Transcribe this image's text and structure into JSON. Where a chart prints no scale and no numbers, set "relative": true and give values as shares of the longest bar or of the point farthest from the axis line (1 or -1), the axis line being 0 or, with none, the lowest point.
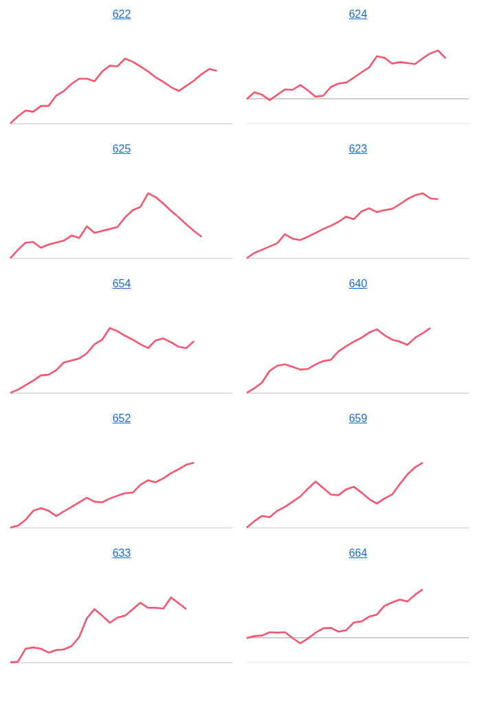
{
  "chart_data": [
    {
      "type": "line",
      "title": "622",
      "relative": true,
      "legend": false,
      "categories": [
        null,
        null,
        null,
        null,
        null,
        null,
        null,
        null,
        null,
        null,
        null,
        null,
        null,
        null,
        null,
        null,
        null,
        null,
        null,
        null,
        null,
        null,
        null,
        null,
        null,
        null,
        null,
        null,
        null,
        null
      ],
      "series": [
        {
          "color": "#f5566f",
          "values": [
            0,
            0.11,
            0.2,
            0.18,
            0.27,
            0.27,
            0.43,
            0.5,
            0.61,
            0.69,
            0.69,
            0.65,
            0.8,
            0.89,
            0.88,
            1,
            0.95,
            0.88,
            0.8,
            0.71,
            0.64,
            0.56,
            0.5,
            0.58,
            0.66,
            0.76,
            0.84,
            0.81,
            null,
            null
          ]
        }
      ]
    },
    {
      "type": "line",
      "title": "624",
      "relative": true,
      "legend": false,
      "categories": [
        null,
        null,
        null,
        null,
        null,
        null,
        null,
        null,
        null,
        null,
        null,
        null,
        null,
        null,
        null,
        null,
        null,
        null,
        null,
        null,
        null,
        null,
        null,
        null,
        null,
        null,
        null,
        null,
        null,
        null
      ],
      "series": [
        {
          "color": "#f5566f",
          "values": [
            0,
            0.14,
            0.09,
            -0.02,
            0.09,
            0.2,
            0.19,
            0.29,
            0.18,
            0.05,
            0.07,
            0.25,
            0.32,
            0.34,
            0.44,
            0.55,
            0.65,
            0.88,
            0.85,
            0.73,
            0.76,
            0.74,
            0.72,
            0.84,
            0.94,
            1,
            0.84,
            null,
            null,
            null
          ]
        }
      ]
    },
    {
      "type": "line",
      "title": "625",
      "relative": true,
      "legend": false,
      "categories": [
        null,
        null,
        null,
        null,
        null,
        null,
        null,
        null,
        null,
        null,
        null,
        null,
        null,
        null,
        null,
        null,
        null,
        null,
        null,
        null,
        null,
        null,
        null,
        null,
        null,
        null,
        null,
        null,
        null,
        null
      ],
      "series": [
        {
          "color": "#f5566f",
          "values": [
            0,
            0.13,
            0.24,
            0.25,
            0.16,
            0.21,
            0.24,
            0.27,
            0.35,
            0.31,
            0.49,
            0.39,
            0.42,
            0.45,
            0.48,
            0.63,
            0.74,
            0.79,
            1,
            0.94,
            0.84,
            0.73,
            0.63,
            0.52,
            0.42,
            0.33,
            null,
            null,
            null,
            null
          ]
        }
      ]
    },
    {
      "type": "line",
      "title": "623",
      "relative": true,
      "legend": false,
      "categories": [
        null,
        null,
        null,
        null,
        null,
        null,
        null,
        null,
        null,
        null,
        null,
        null,
        null,
        null,
        null,
        null,
        null,
        null,
        null,
        null,
        null,
        null,
        null,
        null,
        null,
        null,
        null,
        null,
        null,
        null
      ],
      "series": [
        {
          "color": "#f5566f",
          "values": [
            0,
            0.08,
            0.13,
            0.18,
            0.23,
            0.37,
            0.3,
            0.28,
            0.33,
            0.39,
            0.45,
            0.5,
            0.56,
            0.64,
            0.6,
            0.72,
            0.77,
            0.71,
            0.74,
            0.76,
            0.83,
            0.91,
            0.97,
            1,
            0.92,
            0.91,
            null,
            null,
            null,
            null
          ]
        }
      ]
    },
    {
      "type": "line",
      "title": "654",
      "relative": true,
      "legend": false,
      "categories": [
        null,
        null,
        null,
        null,
        null,
        null,
        null,
        null,
        null,
        null,
        null,
        null,
        null,
        null,
        null,
        null,
        null,
        null,
        null,
        null,
        null,
        null,
        null,
        null,
        null,
        null,
        null,
        null,
        null,
        null
      ],
      "series": [
        {
          "color": "#f5566f",
          "values": [
            0,
            0.05,
            0.12,
            0.19,
            0.27,
            0.28,
            0.35,
            0.47,
            0.5,
            0.53,
            0.61,
            0.75,
            0.82,
            1,
            0.95,
            0.88,
            0.82,
            0.75,
            0.69,
            0.81,
            0.84,
            0.78,
            0.71,
            0.69,
            0.8,
            null,
            null,
            null,
            null,
            null
          ]
        }
      ]
    },
    {
      "type": "line",
      "title": "640",
      "relative": true,
      "legend": false,
      "categories": [
        null,
        null,
        null,
        null,
        null,
        null,
        null,
        null,
        null,
        null,
        null,
        null,
        null,
        null,
        null,
        null,
        null,
        null,
        null,
        null,
        null,
        null,
        null,
        null,
        null,
        null,
        null,
        null,
        null,
        null
      ],
      "series": [
        {
          "color": "#f5566f",
          "values": [
            0,
            0.07,
            0.16,
            0.34,
            0.42,
            0.44,
            0.4,
            0.36,
            0.37,
            0.44,
            0.49,
            0.51,
            0.64,
            0.72,
            0.79,
            0.85,
            0.93,
            0.98,
            0.89,
            0.82,
            0.79,
            0.74,
            0.85,
            0.92,
            1,
            null,
            null,
            null,
            null,
            null
          ]
        }
      ]
    },
    {
      "type": "line",
      "title": "652",
      "relative": true,
      "legend": false,
      "categories": [
        null,
        null,
        null,
        null,
        null,
        null,
        null,
        null,
        null,
        null,
        null,
        null,
        null,
        null,
        null,
        null,
        null,
        null,
        null,
        null,
        null,
        null,
        null,
        null,
        null,
        null,
        null,
        null,
        null,
        null
      ],
      "series": [
        {
          "color": "#f5566f",
          "values": [
            0,
            0.03,
            0.12,
            0.26,
            0.3,
            0.26,
            0.18,
            0.25,
            0.32,
            0.39,
            0.46,
            0.4,
            0.39,
            0.45,
            0.49,
            0.53,
            0.54,
            0.66,
            0.73,
            0.7,
            0.76,
            0.84,
            0.9,
            0.97,
            1,
            null,
            null,
            null,
            null,
            null
          ]
        }
      ]
    },
    {
      "type": "line",
      "title": "659",
      "relative": true,
      "legend": false,
      "categories": [
        null,
        null,
        null,
        null,
        null,
        null,
        null,
        null,
        null,
        null,
        null,
        null,
        null,
        null,
        null,
        null,
        null,
        null,
        null,
        null,
        null,
        null,
        null,
        null,
        null,
        null,
        null,
        null,
        null,
        null
      ],
      "series": [
        {
          "color": "#f5566f",
          "values": [
            0,
            0.1,
            0.18,
            0.16,
            0.26,
            0.32,
            0.4,
            0.48,
            0.6,
            0.71,
            0.61,
            0.51,
            0.5,
            0.59,
            0.63,
            0.54,
            0.44,
            0.37,
            0.45,
            0.51,
            0.67,
            0.82,
            0.93,
            1,
            null,
            null,
            null,
            null,
            null,
            null
          ]
        }
      ]
    },
    {
      "type": "line",
      "title": "633",
      "relative": true,
      "legend": false,
      "categories": [
        null,
        null,
        null,
        null,
        null,
        null,
        null,
        null,
        null,
        null,
        null,
        null,
        null,
        null,
        null,
        null,
        null,
        null,
        null,
        null,
        null,
        null,
        null,
        null,
        null,
        null,
        null,
        null,
        null,
        null
      ],
      "series": [
        {
          "color": "#f5566f",
          "values": [
            0,
            0.01,
            0.21,
            0.23,
            0.21,
            0.15,
            0.19,
            0.2,
            0.25,
            0.39,
            0.68,
            0.82,
            0.72,
            0.61,
            0.69,
            0.72,
            0.82,
            0.92,
            0.84,
            0.84,
            0.83,
            1,
            0.91,
            0.82,
            null,
            null,
            null,
            null,
            null,
            null
          ]
        }
      ]
    },
    {
      "type": "line",
      "title": "664",
      "relative": true,
      "legend": false,
      "categories": [
        null,
        null,
        null,
        null,
        null,
        null,
        null,
        null,
        null,
        null,
        null,
        null,
        null,
        null,
        null,
        null,
        null,
        null,
        null,
        null,
        null,
        null,
        null,
        null,
        null,
        null,
        null,
        null,
        null,
        null
      ],
      "series": [
        {
          "color": "#f5566f",
          "values": [
            0,
            0.04,
            0.05,
            0.12,
            0.11,
            0.12,
            0,
            -0.11,
            -0.01,
            0.11,
            0.2,
            0.21,
            0.13,
            0.16,
            0.32,
            0.34,
            0.44,
            0.48,
            0.66,
            0.73,
            0.79,
            0.75,
            0.89,
            1,
            null,
            null,
            null,
            null,
            null,
            null
          ]
        }
      ]
    }
  ]
}
